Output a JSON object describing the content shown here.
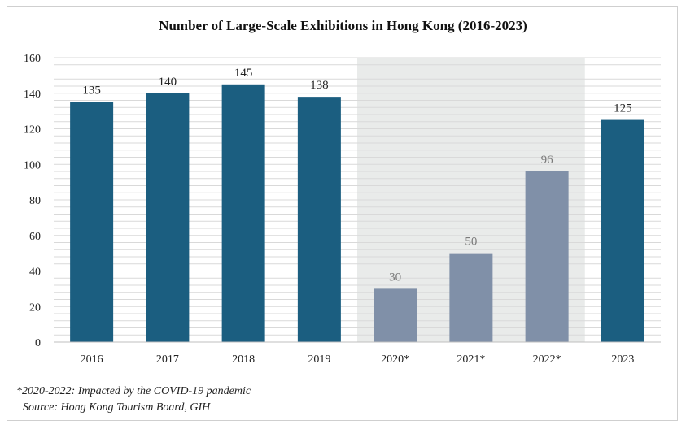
{
  "chart_data": {
    "type": "bar",
    "title": "Number of Large-Scale Exhibitions in Hong Kong (2016-2023)",
    "categories": [
      "2016",
      "2017",
      "2018",
      "2019",
      "2020*",
      "2021*",
      "2022*",
      "2023"
    ],
    "values": [
      135,
      140,
      145,
      138,
      30,
      50,
      96,
      125
    ],
    "highlighted_categories": [
      "2020*",
      "2021*",
      "2022*"
    ],
    "ylim": [
      0,
      160
    ],
    "yticks": [
      0,
      20,
      40,
      60,
      80,
      100,
      120,
      140,
      160
    ],
    "xlabel": "",
    "ylabel": "",
    "grid": true,
    "colors": {
      "normal_bar": "#1b5e80",
      "covid_bar": "#8090a8",
      "covid_shade": "#e9ebea",
      "normal_label": "#222222",
      "covid_label": "#7a7a7a",
      "gridline": "#d9d9d9"
    }
  },
  "footnote": "*2020-2022: Impacted by the COVID-19 pandemic",
  "source": "Source: Hong Kong Tourism Board, GIH"
}
